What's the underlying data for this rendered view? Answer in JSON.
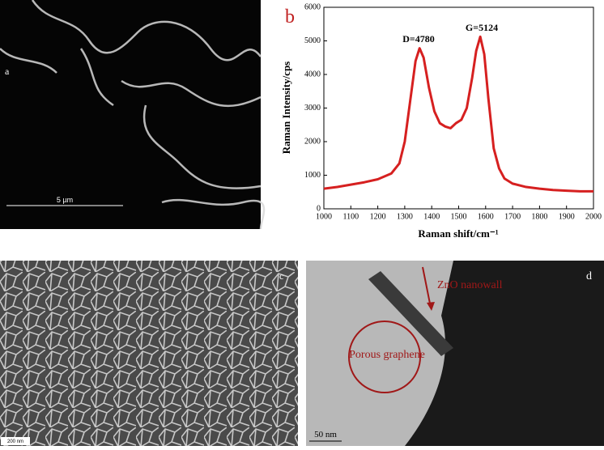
{
  "chart_data": {
    "type": "line",
    "panel_label": "b",
    "xlabel": "Raman shift/cm⁻¹",
    "ylabel": "Raman Intensity/cps",
    "annotations": [
      "D=4780",
      "G=5124"
    ],
    "xlim": [
      1000,
      2000
    ],
    "xticks": [
      1000,
      1100,
      1200,
      1300,
      1400,
      1500,
      1600,
      1700,
      1800,
      1900,
      2000
    ],
    "ylim": [
      0,
      6000
    ],
    "yticks": [
      0,
      1000,
      2000,
      3000,
      4000,
      5000,
      6000
    ],
    "series": [
      {
        "color": "#d62020",
        "x": [
          1000,
          1050,
          1100,
          1150,
          1200,
          1250,
          1280,
          1300,
          1320,
          1340,
          1355,
          1370,
          1390,
          1410,
          1430,
          1450,
          1470,
          1490,
          1510,
          1530,
          1550,
          1565,
          1580,
          1595,
          1610,
          1630,
          1650,
          1670,
          1700,
          1750,
          1800,
          1850,
          1900,
          1950,
          2000
        ],
        "values": [
          600,
          650,
          720,
          790,
          880,
          1050,
          1350,
          2000,
          3200,
          4400,
          4780,
          4500,
          3600,
          2900,
          2550,
          2450,
          2400,
          2550,
          2650,
          3000,
          3900,
          4700,
          5124,
          4600,
          3300,
          1800,
          1200,
          900,
          750,
          650,
          600,
          560,
          540,
          520,
          520
        ]
      }
    ]
  },
  "panels": {
    "a": {
      "label": "a",
      "scale": "5 µm"
    },
    "c": {
      "label": "c",
      "scale": "200 nm"
    },
    "d": {
      "label": "d",
      "scale": "50 nm",
      "arrow_label": "ZnO nanowall",
      "circle_label": "Porous graphene"
    }
  }
}
